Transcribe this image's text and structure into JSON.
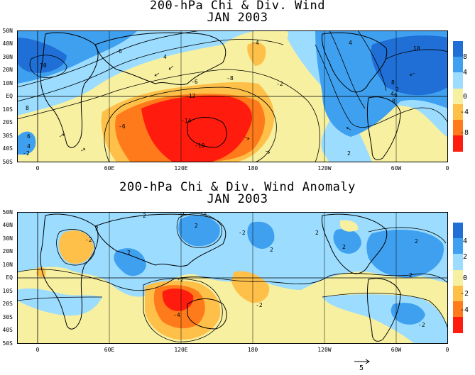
{
  "panels": [
    {
      "title_line1": "200-hPa Chi & Div. Wind",
      "title_line2": "JAN 2003",
      "lat_labels": [
        "50N",
        "40N",
        "30N",
        "20N",
        "10N",
        "EQ",
        "10S",
        "20S",
        "30S",
        "40S",
        "50S"
      ],
      "lon_labels": [
        "0",
        "60E",
        "120E",
        "180",
        "120W",
        "60W",
        "0"
      ],
      "colorbar": {
        "labels": [
          "8",
          "4",
          "0",
          "-4",
          "-8"
        ],
        "colors": [
          "#1f6fd6",
          "#3fa0f0",
          "#9bdcff",
          "#f7f0a0",
          "#ffc04a",
          "#ff7a1a",
          "#ff1c0e"
        ]
      },
      "contour_labels": [
        "10",
        "6",
        "4",
        "-4",
        "8",
        "-6",
        "-2",
        "-8",
        "-12",
        "-14",
        "-10",
        "-6",
        "6",
        "4",
        "-2",
        "2",
        "0",
        "2",
        "8",
        "4",
        "6",
        "10",
        "4"
      ]
    },
    {
      "title_line1": "200-hPa Chi & Div. Wind Anomaly",
      "title_line2": "JAN 2003",
      "lat_labels": [
        "50N",
        "40N",
        "30N",
        "20N",
        "10N",
        "EQ",
        "10S",
        "20S",
        "30S",
        "40S",
        "50S"
      ],
      "lon_labels": [
        "0",
        "60E",
        "120E",
        "180",
        "120W",
        "60W",
        "0"
      ],
      "colorbar": {
        "labels": [
          "4",
          "2",
          "0",
          "-2",
          "-4"
        ],
        "colors": [
          "#1f6fd6",
          "#3fa0f0",
          "#9bdcff",
          "#f7f0a0",
          "#ffc04a",
          "#ff7a1a",
          "#ff1c0e"
        ]
      },
      "contour_labels": [
        "2",
        "2",
        "-2",
        "2",
        "-2",
        "2",
        "2",
        "-2",
        "-4",
        "-2",
        "2",
        "-2",
        "2",
        "-2",
        "-2",
        "2",
        "2"
      ]
    }
  ],
  "reference_vector_label": "5",
  "colors": {
    "strong_pos": "#1f6fd6",
    "pos": "#3fa0f0",
    "weak_pos": "#9bdcff",
    "weak_neg": "#f7f0a0",
    "neg": "#ffc04a",
    "strong_neg": "#ff7a1a",
    "extreme_neg": "#ff1c0e"
  }
}
